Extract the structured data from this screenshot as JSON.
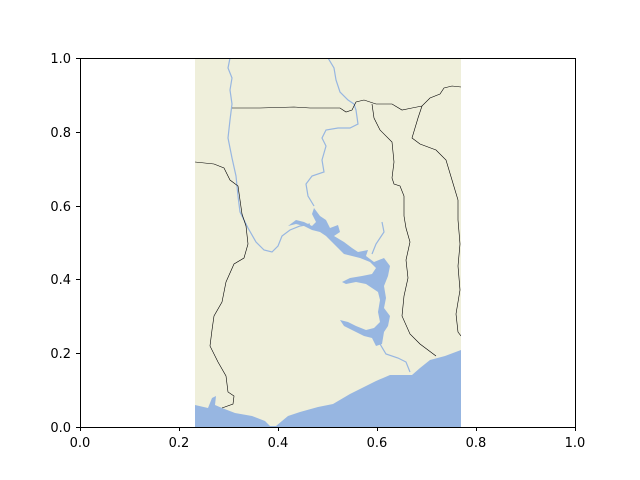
{
  "figure": {
    "background": "#ffffff",
    "colors": {
      "land": "#efefdb",
      "water": "#97b6e1",
      "border": "#000000",
      "axis": "#000000"
    }
  },
  "axes": {
    "x_ticks": [
      "0.0",
      "0.2",
      "0.4",
      "0.6",
      "0.8",
      "1.0"
    ],
    "y_ticks": [
      "0.0",
      "0.2",
      "0.4",
      "0.6",
      "0.8",
      "1.0"
    ],
    "xlim": [
      0,
      1
    ],
    "ylim": [
      0,
      1
    ]
  },
  "map": {
    "features": [
      "land",
      "ocean",
      "lakes",
      "rivers",
      "country-borders"
    ],
    "extent_x": [
      0.232,
      0.768
    ],
    "extent_y": [
      0,
      1
    ]
  }
}
